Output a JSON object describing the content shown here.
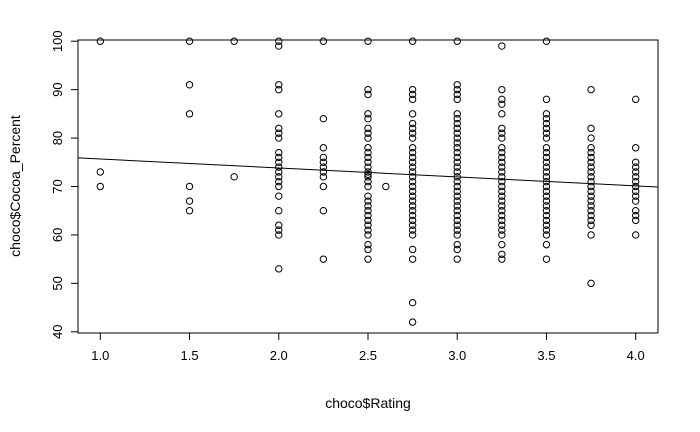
{
  "chart_data": {
    "type": "scatter",
    "title": "",
    "xlabel": "choco$Rating",
    "ylabel": "choco$Cocoa_Percent",
    "xlim": [
      0.875,
      4.125
    ],
    "ylim": [
      39.75,
      100.25
    ],
    "x_ticks": [
      "1.0",
      "1.5",
      "2.0",
      "2.5",
      "3.0",
      "3.5",
      "4.0"
    ],
    "y_ticks": [
      "40",
      "50",
      "60",
      "70",
      "80",
      "90",
      "100"
    ],
    "grid": false,
    "regression_line": {
      "x": [
        0.875,
        4.125
      ],
      "y": [
        75.9,
        69.9
      ]
    },
    "points": [
      [
        1.0,
        100
      ],
      [
        1.0,
        73
      ],
      [
        1.0,
        70
      ],
      [
        1.5,
        100
      ],
      [
        1.5,
        91
      ],
      [
        1.5,
        85
      ],
      [
        1.5,
        70
      ],
      [
        1.5,
        67
      ],
      [
        1.5,
        65
      ],
      [
        1.75,
        100
      ],
      [
        1.75,
        72
      ],
      [
        2.0,
        100
      ],
      [
        2.0,
        99
      ],
      [
        2.0,
        91
      ],
      [
        2.0,
        90
      ],
      [
        2.0,
        85
      ],
      [
        2.0,
        82
      ],
      [
        2.0,
        81
      ],
      [
        2.0,
        80
      ],
      [
        2.0,
        77
      ],
      [
        2.0,
        76
      ],
      [
        2.0,
        75
      ],
      [
        2.0,
        74
      ],
      [
        2.0,
        73
      ],
      [
        2.0,
        72
      ],
      [
        2.0,
        71
      ],
      [
        2.0,
        70
      ],
      [
        2.0,
        68
      ],
      [
        2.0,
        65
      ],
      [
        2.0,
        62
      ],
      [
        2.0,
        61
      ],
      [
        2.0,
        60
      ],
      [
        2.0,
        53
      ],
      [
        2.25,
        100
      ],
      [
        2.25,
        84
      ],
      [
        2.25,
        78
      ],
      [
        2.25,
        76
      ],
      [
        2.25,
        75
      ],
      [
        2.25,
        74
      ],
      [
        2.25,
        73
      ],
      [
        2.25,
        72
      ],
      [
        2.25,
        70
      ],
      [
        2.25,
        65
      ],
      [
        2.25,
        55
      ],
      [
        2.5,
        100
      ],
      [
        2.5,
        90
      ],
      [
        2.5,
        89
      ],
      [
        2.5,
        85
      ],
      [
        2.5,
        84
      ],
      [
        2.5,
        82
      ],
      [
        2.5,
        81
      ],
      [
        2.5,
        80
      ],
      [
        2.5,
        78
      ],
      [
        2.5,
        77
      ],
      [
        2.5,
        76
      ],
      [
        2.5,
        75
      ],
      [
        2.5,
        74
      ],
      [
        2.5,
        73
      ],
      [
        2.5,
        72.5
      ],
      [
        2.5,
        72
      ],
      [
        2.5,
        71
      ],
      [
        2.5,
        70
      ],
      [
        2.5,
        68
      ],
      [
        2.5,
        67
      ],
      [
        2.5,
        66
      ],
      [
        2.5,
        65
      ],
      [
        2.5,
        64
      ],
      [
        2.5,
        63
      ],
      [
        2.5,
        62
      ],
      [
        2.5,
        61
      ],
      [
        2.5,
        60
      ],
      [
        2.5,
        58
      ],
      [
        2.5,
        57
      ],
      [
        2.5,
        55
      ],
      [
        2.6,
        70
      ],
      [
        2.75,
        100
      ],
      [
        2.75,
        90
      ],
      [
        2.75,
        89
      ],
      [
        2.75,
        88
      ],
      [
        2.75,
        85
      ],
      [
        2.75,
        83
      ],
      [
        2.75,
        82
      ],
      [
        2.75,
        81
      ],
      [
        2.75,
        80
      ],
      [
        2.75,
        78
      ],
      [
        2.75,
        77
      ],
      [
        2.75,
        76
      ],
      [
        2.75,
        75
      ],
      [
        2.75,
        74
      ],
      [
        2.75,
        73
      ],
      [
        2.75,
        72
      ],
      [
        2.75,
        71
      ],
      [
        2.75,
        70
      ],
      [
        2.75,
        69
      ],
      [
        2.75,
        68
      ],
      [
        2.75,
        67
      ],
      [
        2.75,
        66
      ],
      [
        2.75,
        65
      ],
      [
        2.75,
        64
      ],
      [
        2.75,
        63
      ],
      [
        2.75,
        62
      ],
      [
        2.75,
        61
      ],
      [
        2.75,
        60
      ],
      [
        2.75,
        57
      ],
      [
        2.75,
        55
      ],
      [
        2.75,
        46
      ],
      [
        2.75,
        42
      ],
      [
        3.0,
        100
      ],
      [
        3.0,
        91
      ],
      [
        3.0,
        90
      ],
      [
        3.0,
        89
      ],
      [
        3.0,
        88
      ],
      [
        3.0,
        85
      ],
      [
        3.0,
        84
      ],
      [
        3.0,
        83
      ],
      [
        3.0,
        82
      ],
      [
        3.0,
        81
      ],
      [
        3.0,
        80
      ],
      [
        3.0,
        79
      ],
      [
        3.0,
        78
      ],
      [
        3.0,
        77
      ],
      [
        3.0,
        76
      ],
      [
        3.0,
        75
      ],
      [
        3.0,
        74
      ],
      [
        3.0,
        73
      ],
      [
        3.0,
        72
      ],
      [
        3.0,
        71
      ],
      [
        3.0,
        70
      ],
      [
        3.0,
        69
      ],
      [
        3.0,
        68
      ],
      [
        3.0,
        67
      ],
      [
        3.0,
        66
      ],
      [
        3.0,
        65
      ],
      [
        3.0,
        64
      ],
      [
        3.0,
        63
      ],
      [
        3.0,
        62
      ],
      [
        3.0,
        61
      ],
      [
        3.0,
        60
      ],
      [
        3.0,
        58
      ],
      [
        3.0,
        57
      ],
      [
        3.0,
        55
      ],
      [
        3.25,
        99
      ],
      [
        3.25,
        90
      ],
      [
        3.25,
        88
      ],
      [
        3.25,
        87
      ],
      [
        3.25,
        85
      ],
      [
        3.25,
        82
      ],
      [
        3.25,
        81
      ],
      [
        3.25,
        80
      ],
      [
        3.25,
        78
      ],
      [
        3.25,
        77
      ],
      [
        3.25,
        76
      ],
      [
        3.25,
        75
      ],
      [
        3.25,
        74
      ],
      [
        3.25,
        73
      ],
      [
        3.25,
        72
      ],
      [
        3.25,
        71
      ],
      [
        3.25,
        70
      ],
      [
        3.25,
        69
      ],
      [
        3.25,
        68
      ],
      [
        3.25,
        67
      ],
      [
        3.25,
        66
      ],
      [
        3.25,
        65
      ],
      [
        3.25,
        64
      ],
      [
        3.25,
        63
      ],
      [
        3.25,
        62
      ],
      [
        3.25,
        61
      ],
      [
        3.25,
        60
      ],
      [
        3.25,
        58
      ],
      [
        3.25,
        56
      ],
      [
        3.25,
        55
      ],
      [
        3.5,
        100
      ],
      [
        3.5,
        88
      ],
      [
        3.5,
        85
      ],
      [
        3.5,
        84
      ],
      [
        3.5,
        83
      ],
      [
        3.5,
        82
      ],
      [
        3.5,
        81
      ],
      [
        3.5,
        80
      ],
      [
        3.5,
        78
      ],
      [
        3.5,
        77
      ],
      [
        3.5,
        76
      ],
      [
        3.5,
        75
      ],
      [
        3.5,
        74
      ],
      [
        3.5,
        73
      ],
      [
        3.5,
        72
      ],
      [
        3.5,
        71
      ],
      [
        3.5,
        70
      ],
      [
        3.5,
        69
      ],
      [
        3.5,
        68
      ],
      [
        3.5,
        67
      ],
      [
        3.5,
        66
      ],
      [
        3.5,
        65
      ],
      [
        3.5,
        64
      ],
      [
        3.5,
        63
      ],
      [
        3.5,
        62
      ],
      [
        3.5,
        61
      ],
      [
        3.5,
        60
      ],
      [
        3.5,
        58
      ],
      [
        3.5,
        55
      ],
      [
        3.75,
        90
      ],
      [
        3.75,
        82
      ],
      [
        3.75,
        80
      ],
      [
        3.75,
        78
      ],
      [
        3.75,
        77
      ],
      [
        3.75,
        76
      ],
      [
        3.75,
        75
      ],
      [
        3.75,
        74
      ],
      [
        3.75,
        73
      ],
      [
        3.75,
        72
      ],
      [
        3.75,
        71
      ],
      [
        3.75,
        70
      ],
      [
        3.75,
        69
      ],
      [
        3.75,
        68
      ],
      [
        3.75,
        67
      ],
      [
        3.75,
        66
      ],
      [
        3.75,
        65
      ],
      [
        3.75,
        64
      ],
      [
        3.75,
        63
      ],
      [
        3.75,
        62
      ],
      [
        3.75,
        60
      ],
      [
        3.75,
        50
      ],
      [
        4.0,
        88
      ],
      [
        4.0,
        78
      ],
      [
        4.0,
        75
      ],
      [
        4.0,
        74
      ],
      [
        4.0,
        73
      ],
      [
        4.0,
        72
      ],
      [
        4.0,
        71
      ],
      [
        4.0,
        70
      ],
      [
        4.0,
        69
      ],
      [
        4.0,
        68
      ],
      [
        4.0,
        67
      ],
      [
        4.0,
        65
      ],
      [
        4.0,
        64
      ],
      [
        4.0,
        63
      ],
      [
        4.0,
        60
      ]
    ]
  }
}
